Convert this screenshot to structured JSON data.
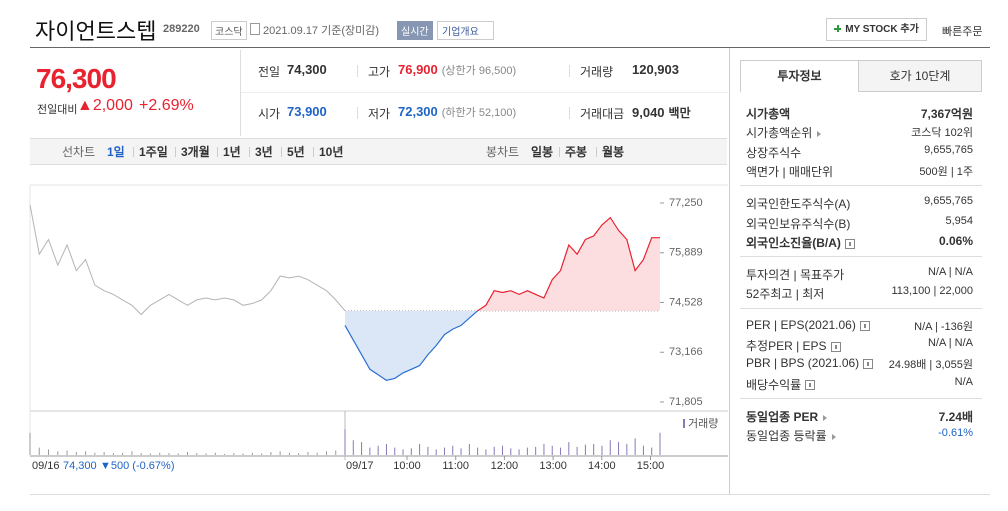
{
  "header": {
    "name": "자이언트스텝",
    "code": "289220",
    "market": "코스닥",
    "date": "2021.09.17 기준(장미감)",
    "realtime": "실시간",
    "company_info": "기업개요",
    "my_stock": "MY STOCK 추가",
    "quick_order": "빠른주문"
  },
  "price": {
    "current": "76,300",
    "change_label": "전일대비",
    "change": "▲2,000",
    "change_pct": "+2.69%"
  },
  "summary": [
    [
      {
        "label": "전일",
        "value": "74,300"
      },
      {
        "label": "고가",
        "value": "76,900",
        "note": "(상한가 96,500)",
        "color": "#e8222f"
      },
      {
        "label": "거래량",
        "value": "120,903"
      }
    ],
    [
      {
        "label": "시가",
        "value": "73,900",
        "color": "#1f63c6"
      },
      {
        "label": "저가",
        "value": "72,300",
        "note": "(하한가 52,100)",
        "color": "#1f63c6"
      },
      {
        "label": "거래대금",
        "value": "9,040",
        "unit": "백만"
      }
    ]
  ],
  "tabs": {
    "line_label": "선차트",
    "line": [
      "1일",
      "1주일",
      "3개월",
      "1년",
      "3년",
      "5년",
      "10년"
    ],
    "candle_label": "봉차트",
    "candle": [
      "일봉",
      "주봉",
      "월봉"
    ]
  },
  "chart": {
    "type": "line",
    "ylim": [
      71805,
      77250
    ],
    "yticks": [
      {
        "value": 77250,
        "label": "77,250"
      },
      {
        "value": 75889,
        "label": "75,889"
      },
      {
        "value": 74528,
        "label": "74,528"
      },
      {
        "value": 73166,
        "label": "73,166"
      },
      {
        "value": 71805,
        "label": "71,805"
      }
    ],
    "base": 74300,
    "up_color": "#e8222f",
    "down_color": "#2b6fd1",
    "prev_color": "#b4b4b4",
    "prev_day": [
      77200,
      75850,
      76250,
      75550,
      76100,
      75400,
      75700,
      75000,
      74850,
      74750,
      74600,
      74450,
      74200,
      74450,
      74600,
      74750,
      74600,
      74450,
      74600,
      74650,
      74600,
      74650,
      74600,
      74450,
      74500,
      74600,
      74850,
      75250,
      75200,
      75250,
      75150,
      75000,
      74850,
      74600,
      74300
    ],
    "today": [
      73900,
      73500,
      73100,
      72700,
      72550,
      72400,
      72450,
      72600,
      72700,
      72800,
      73100,
      73350,
      73650,
      73800,
      73900,
      74100,
      74300,
      74450,
      74850,
      74800,
      74850,
      74750,
      74850,
      74750,
      74650,
      75150,
      75400,
      76100,
      75850,
      76250,
      76350,
      76650,
      76850,
      76500,
      76250,
      75400,
      75700,
      76300,
      76300
    ],
    "volume": {
      "label": "거래량",
      "ylim": [
        0,
        100
      ],
      "prev_day": [
        60,
        20,
        15,
        10,
        12,
        8,
        10,
        6,
        8,
        5,
        6,
        10,
        5,
        4,
        6,
        5,
        4,
        8,
        5,
        4,
        6,
        3,
        5,
        4,
        6,
        4,
        8,
        10,
        6,
        5,
        8,
        6,
        10,
        12,
        15
      ],
      "today": [
        70,
        40,
        35,
        20,
        25,
        30,
        20,
        15,
        18,
        30,
        22,
        15,
        20,
        25,
        18,
        30,
        20,
        15,
        22,
        25,
        18,
        15,
        20,
        22,
        30,
        25,
        20,
        35,
        22,
        28,
        30,
        25,
        40,
        35,
        30,
        45,
        25,
        20,
        60
      ]
    },
    "prev_date": "09/16",
    "prev_close": "74,300",
    "prev_change": "▼500 (-0.67%)",
    "date": "09/17",
    "times": [
      "10:00",
      "11:00",
      "12:00",
      "13:00",
      "14:00",
      "15:00"
    ]
  },
  "info": {
    "tabs": [
      "투자정보",
      "호가 10단계"
    ],
    "groups": [
      [
        {
          "label": "시가총액",
          "value": "7,367억원",
          "bold": true
        },
        {
          "label": "시가총액순위",
          "value": "코스닥 102위",
          "link": true
        },
        {
          "label": "상장주식수",
          "value": "9,655,765"
        },
        {
          "label": "액면가 | 매매단위",
          "value": "500원 | 1주"
        }
      ],
      [
        {
          "label": "외국인한도주식수(A)",
          "value": "9,655,765"
        },
        {
          "label": "외국인보유주식수(B)",
          "value": "5,954"
        },
        {
          "label": "외국인소진율(B/A)",
          "value": "0.06%",
          "bold": true,
          "help": true
        }
      ],
      [
        {
          "label": "투자의견 | 목표주가",
          "value": "N/A | N/A"
        },
        {
          "label": "52주최고 | 최저",
          "value": "113,100 | 22,000"
        }
      ],
      [
        {
          "label": "PER | EPS(2021.06)",
          "value": "N/A | -136원",
          "help": true
        },
        {
          "label": "추정PER | EPS",
          "value": "N/A | N/A",
          "help": true
        },
        {
          "label": "PBR | BPS (2021.06)",
          "value": "24.98배 | 3,055원",
          "help": true
        },
        {
          "label": "배당수익률",
          "value": "N/A",
          "help": true
        }
      ],
      [
        {
          "label": "동일업종 PER",
          "value": "7.24배",
          "bold": true,
          "link": true
        },
        {
          "label": "동일업종 등락률",
          "value": "-0.61%",
          "link": true,
          "color": "#1f63c6"
        }
      ]
    ]
  }
}
